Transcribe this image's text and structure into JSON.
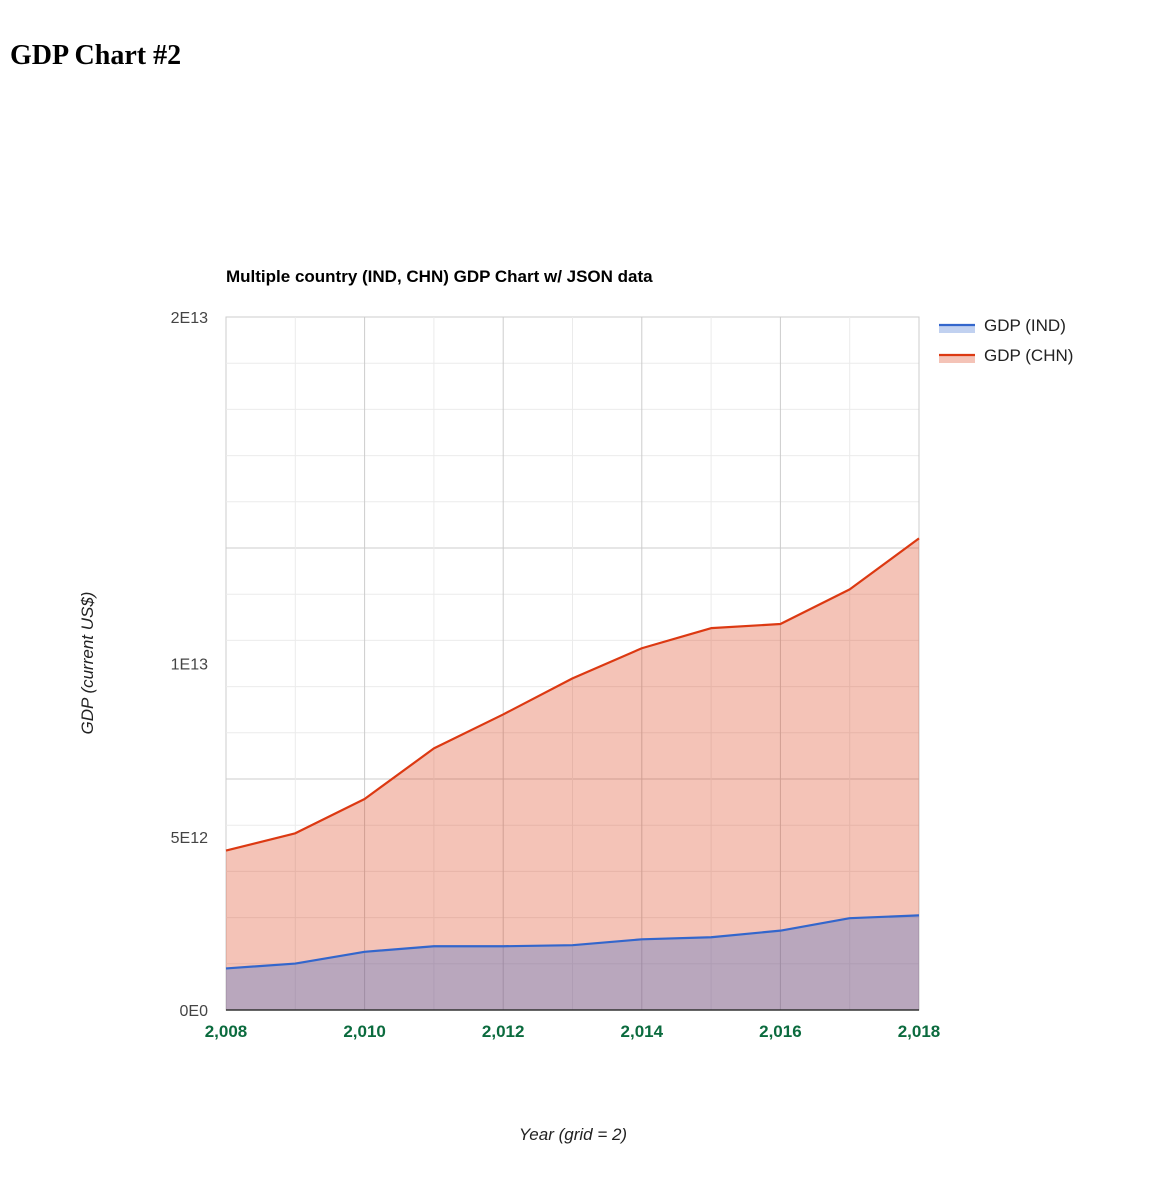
{
  "page": {
    "heading": "GDP Chart #2"
  },
  "colors": {
    "ind_line": "#3366cc",
    "ind_fill": "#3366cc",
    "chn_line": "#dc3912",
    "chn_fill": "#dc3912",
    "x_tick": "#0b6b3e"
  },
  "chart_data": {
    "type": "area",
    "title": "Multiple country (IND, CHN) GDP Chart w/ JSON data",
    "xlabel": "Year (grid = 2)",
    "ylabel": "GDP (current US$)",
    "x": [
      2008,
      2009,
      2010,
      2011,
      2012,
      2013,
      2014,
      2015,
      2016,
      2017,
      2018
    ],
    "xlim": [
      2008,
      2018
    ],
    "ylim": [
      0,
      20000000000000
    ],
    "x_ticks": [
      "2,008",
      "2,010",
      "2,012",
      "2,014",
      "2,016",
      "2,018"
    ],
    "y_ticks": [
      "0E0",
      "5E12",
      "1E13",
      "2E13"
    ],
    "grid": true,
    "legend_position": "right",
    "series": [
      {
        "name": "GDP (IND)",
        "values": [
          1200000000000.0,
          1340000000000.0,
          1680000000000.0,
          1840000000000.0,
          1840000000000.0,
          1870000000000.0,
          2040000000000.0,
          2100000000000.0,
          2290000000000.0,
          2650000000000.0,
          2730000000000.0
        ]
      },
      {
        "name": "GDP (CHN)",
        "values": [
          4600000000000.0,
          5100000000000.0,
          6090000000000.0,
          7550000000000.0,
          8530000000000.0,
          9570000000000.0,
          10440000000000.0,
          11020000000000.0,
          11140000000000.0,
          12140000000000.0,
          13610000000000.0
        ]
      }
    ]
  }
}
